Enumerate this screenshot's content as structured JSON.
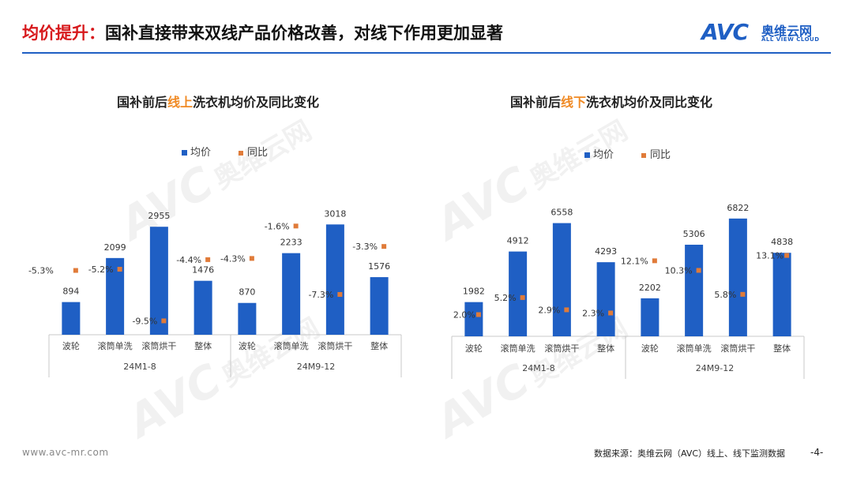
{
  "header": {
    "title_highlight": "均价提升：",
    "title_rest": "国补直接带来双线产品价格改善，对线下作用更加显著",
    "logo_mark": "AVC",
    "logo_cn": "奥维云网",
    "logo_en": "ALL VIEW CLOUD"
  },
  "colors": {
    "bar": "#1f5fc4",
    "marker": "#e07b39",
    "accent": "#d7191c",
    "highlight": "#f08a24"
  },
  "chart_data": [
    {
      "type": "bar",
      "title_pre": "国补前后",
      "title_hl": "线上",
      "title_post": "洗衣机均价及同比变化",
      "legend": [
        "均价",
        "同比"
      ],
      "legend_position": "top-center",
      "groups": [
        "24M1-8",
        "24M9-12"
      ],
      "categories": [
        "波轮",
        "滚筒单洗",
        "滚筒烘干",
        "整体",
        "波轮",
        "滚筒单洗",
        "滚筒烘干",
        "整体"
      ],
      "series": [
        {
          "name": "均价",
          "type": "bar",
          "values": [
            894,
            2099,
            2955,
            1476,
            870,
            2233,
            3018,
            1576
          ]
        },
        {
          "name": "同比",
          "type": "scatter",
          "values": [
            -5.3,
            -5.2,
            -9.5,
            -4.4,
            -4.3,
            -1.6,
            -7.3,
            -3.3
          ],
          "labels": [
            "-5.3%",
            "-5.2%",
            "-9.5%",
            "-4.4%",
            "-4.3%",
            "-1.6%",
            "-7.3%",
            "-3.3%"
          ]
        }
      ],
      "ylim": [
        0,
        3500
      ],
      "y2lim": [
        -10,
        0
      ]
    },
    {
      "type": "bar",
      "title_pre": "国补前后",
      "title_hl": "线下",
      "title_post": "洗衣机均价及同比变化",
      "legend": [
        "均价",
        "同比"
      ],
      "legend_position": "top-center",
      "groups": [
        "24M1-8",
        "24M9-12"
      ],
      "categories": [
        "波轮",
        "滚筒单洗",
        "滚筒烘干",
        "整体",
        "波轮",
        "滚筒单洗",
        "滚筒烘干",
        "整体"
      ],
      "series": [
        {
          "name": "均价",
          "type": "bar",
          "values": [
            1982,
            4912,
            6558,
            4293,
            2202,
            5306,
            6822,
            4838
          ]
        },
        {
          "name": "同比",
          "type": "scatter",
          "values": [
            2.0,
            5.2,
            2.9,
            2.3,
            12.1,
            10.3,
            5.8,
            13.1
          ],
          "labels": [
            "2.0%",
            "5.2%",
            "2.9%",
            "2.3%",
            "12.1%",
            "10.3%",
            "5.8%",
            "13.1%"
          ]
        }
      ],
      "ylim": [
        0,
        7500
      ],
      "y2lim": [
        0,
        16
      ]
    }
  ],
  "footer": {
    "url": "www.avc-mr.com",
    "source": "数据来源：奥维云网（AVC）线上、线下监测数据",
    "page": "-4-"
  }
}
